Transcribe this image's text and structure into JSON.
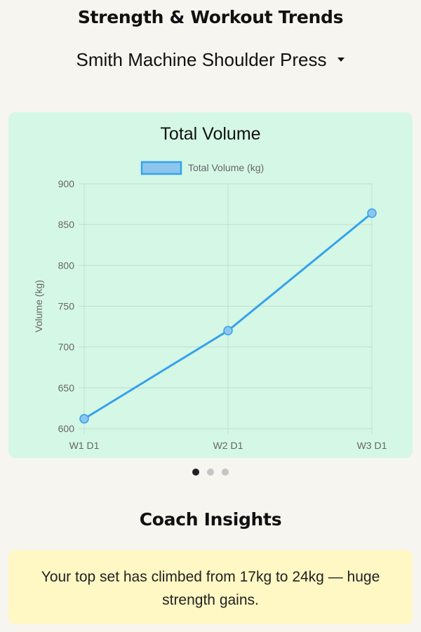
{
  "header": {
    "title": "Strength & Workout Trends",
    "exercise_selected": "Smith Machine Shoulder Press"
  },
  "chart_data": {
    "type": "line",
    "title": "Total Volume",
    "categories": [
      "W1 D1",
      "W2 D1",
      "W3 D1"
    ],
    "series": [
      {
        "name": "Total Volume (kg)",
        "values": [
          612,
          720,
          864
        ],
        "color": "#36a2eb"
      }
    ],
    "xlabel": "",
    "ylabel": "Volume (kg)",
    "ylim": [
      600,
      900
    ],
    "yticks": [
      600,
      650,
      700,
      750,
      800,
      850,
      900
    ],
    "grid": true,
    "legend_position": "top"
  },
  "carousel": {
    "count": 3,
    "active_index": 0
  },
  "insights": {
    "title": "Coach Insights",
    "text": "Your top set has climbed from 17kg to 24kg — huge strength gains."
  },
  "colors": {
    "background": "#f7f5f0",
    "chart_card": "#d5f7e6",
    "insight_card": "#fff7c4",
    "line": "#36a2eb"
  }
}
